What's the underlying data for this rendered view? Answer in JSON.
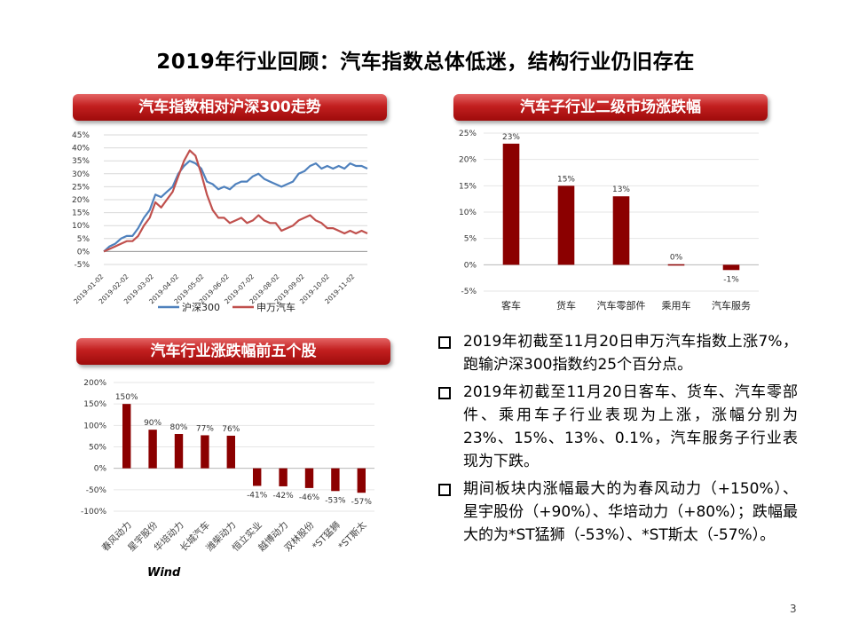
{
  "title": "2019年行业回顾：汽车指数总体低迷，结构行业仍旧存在",
  "page_number": "3",
  "source_label": "Wind",
  "bullets": [
    "2019年初截至11月20日申万汽车指数上涨7%，跑输沪深300指数约25个百分点。",
    "2019年初截至11月20日客车、货车、汽车零部件、乘用车子行业表现为上涨，涨幅分别为23%、15%、13%、0.1%，汽车服务子行业表现为下跌。",
    "期间板块内涨幅最大的为春风动力（+150%）、星宇股份（+90%）、华培动力（+80%）；跌幅最大的为*ST猛狮（-53%）、*ST斯太（-57%）。"
  ],
  "chart_data": [
    {
      "type": "line",
      "banner": "汽车指数相对沪深300走势",
      "ylim": [
        -5,
        45
      ],
      "y_ticks": [
        "-5%",
        "0%",
        "5%",
        "10%",
        "15%",
        "20%",
        "25%",
        "30%",
        "35%",
        "40%",
        "45%"
      ],
      "x_ticks": [
        "2019-01-02",
        "2019-02-02",
        "2019-03-02",
        "2019-04-02",
        "2019-05-02",
        "2019-06-02",
        "2019-07-02",
        "2019-08-02",
        "2019-09-02",
        "2019-10-02",
        "2019-11-02"
      ],
      "x": [
        "2019-01-02",
        "2019-01-09",
        "2019-01-16",
        "2019-01-23",
        "2019-01-30",
        "2019-02-06",
        "2019-02-13",
        "2019-02-20",
        "2019-02-27",
        "2019-03-06",
        "2019-03-13",
        "2019-03-20",
        "2019-03-27",
        "2019-04-03",
        "2019-04-10",
        "2019-04-17",
        "2019-04-24",
        "2019-05-01",
        "2019-05-08",
        "2019-05-15",
        "2019-05-22",
        "2019-05-29",
        "2019-06-05",
        "2019-06-12",
        "2019-06-19",
        "2019-06-26",
        "2019-07-03",
        "2019-07-10",
        "2019-07-17",
        "2019-07-24",
        "2019-07-31",
        "2019-08-07",
        "2019-08-14",
        "2019-08-21",
        "2019-08-28",
        "2019-09-04",
        "2019-09-11",
        "2019-09-18",
        "2019-09-25",
        "2019-10-02",
        "2019-10-09",
        "2019-10-16",
        "2019-10-23",
        "2019-10-30",
        "2019-11-06",
        "2019-11-13",
        "2019-11-20"
      ],
      "series": [
        {
          "name": "沪深300",
          "color": "#4f81bd",
          "values": [
            0,
            2,
            3,
            5,
            6,
            6,
            9,
            13,
            16,
            22,
            21,
            23,
            25,
            30,
            33,
            35,
            34,
            32,
            27,
            26,
            24,
            25,
            24,
            26,
            27,
            27,
            29,
            30,
            28,
            27,
            26,
            25,
            26,
            27,
            30,
            31,
            33,
            34,
            32,
            33,
            32,
            33,
            32,
            34,
            33,
            33,
            32
          ]
        },
        {
          "name": "申万汽车",
          "color": "#c0504d",
          "values": [
            0,
            1,
            2,
            3,
            4,
            4,
            6,
            10,
            13,
            19,
            17,
            20,
            23,
            29,
            35,
            39,
            37,
            30,
            22,
            16,
            13,
            13,
            11,
            12,
            13,
            11,
            12,
            14,
            12,
            11,
            11,
            8,
            9,
            10,
            12,
            13,
            14,
            12,
            11,
            9,
            9,
            8,
            7,
            8,
            7,
            8,
            7
          ]
        }
      ]
    },
    {
      "type": "bar",
      "banner": "汽车子行业二级市场涨跌幅",
      "ylim": [
        -5,
        25
      ],
      "y_ticks": [
        "-5%",
        "0%",
        "5%",
        "10%",
        "15%",
        "20%",
        "25%"
      ],
      "categories": [
        "客车",
        "货车",
        "汽车零部件",
        "乘用车",
        "汽车服务"
      ],
      "values": [
        23,
        15,
        13,
        0.1,
        -1
      ],
      "labels": [
        "23%",
        "15%",
        "13%",
        "0%",
        "-1%"
      ],
      "color": "#8b0000"
    },
    {
      "type": "bar",
      "banner": "汽车行业涨跌幅前五个股",
      "ylim": [
        -100,
        200
      ],
      "y_ticks": [
        "-100%",
        "-50%",
        "0%",
        "50%",
        "100%",
        "150%",
        "200%"
      ],
      "categories": [
        "春风动力",
        "星宇股份",
        "华培动力",
        "长城汽车",
        "潍柴动力",
        "恒立实业",
        "越博动力",
        "双林股份",
        "*ST猛狮",
        "*ST斯太"
      ],
      "values": [
        150,
        90,
        80,
        77,
        76,
        -41,
        -42,
        -46,
        -53,
        -57
      ],
      "labels": [
        "150%",
        "90%",
        "80%",
        "77%",
        "76%",
        "-41%",
        "-42%",
        "-46%",
        "-53%",
        "-57%"
      ],
      "color": "#8b0000"
    }
  ]
}
